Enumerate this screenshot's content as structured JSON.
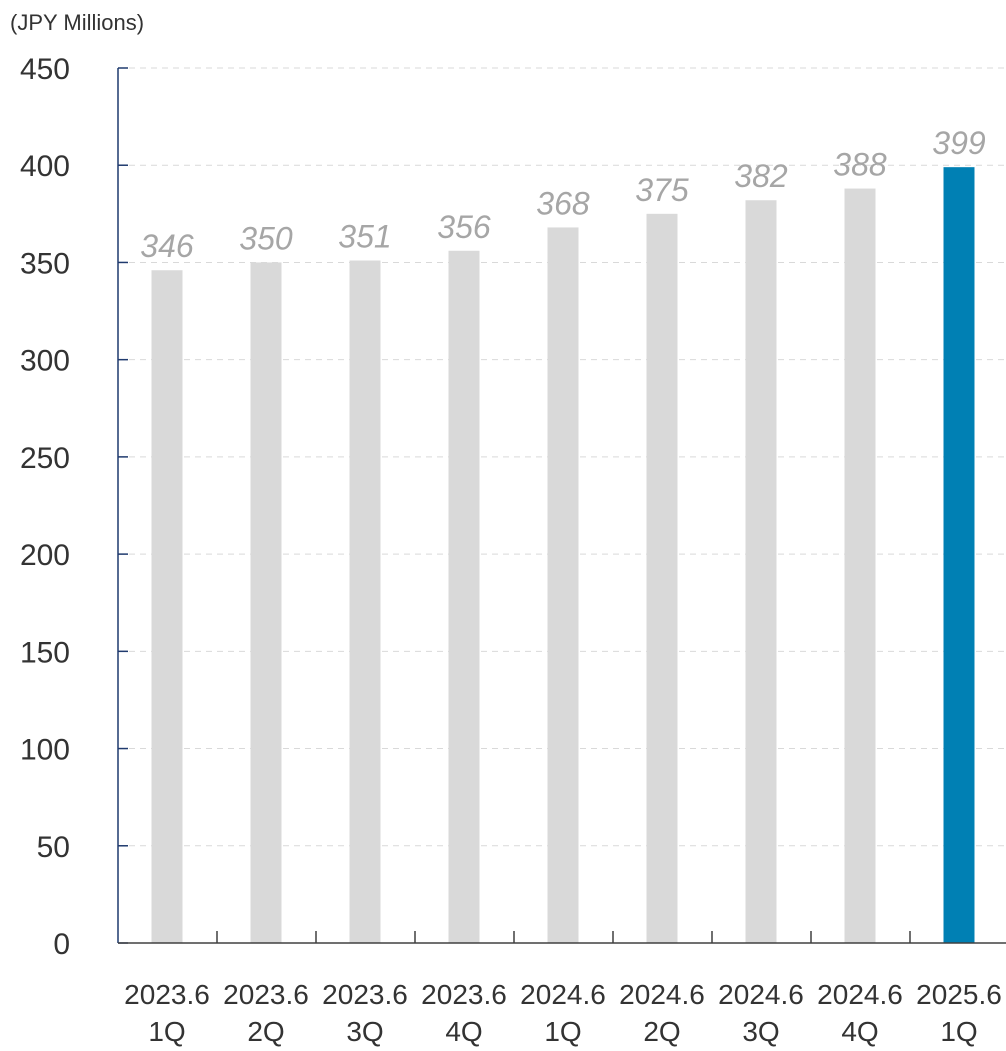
{
  "chart_data": {
    "type": "bar",
    "unit_label": "(JPY Millions)",
    "categories": [
      [
        "2023.6",
        "1Q"
      ],
      [
        "2023.6",
        "2Q"
      ],
      [
        "2023.6",
        "3Q"
      ],
      [
        "2023.6",
        "4Q"
      ],
      [
        "2024.6",
        "1Q"
      ],
      [
        "2024.6",
        "2Q"
      ],
      [
        "2024.6",
        "3Q"
      ],
      [
        "2024.6",
        "4Q"
      ],
      [
        "2025.6",
        "1Q"
      ]
    ],
    "values": [
      346,
      350,
      351,
      356,
      368,
      375,
      382,
      388,
      399
    ],
    "data_labels": [
      "346",
      "350",
      "351",
      "356",
      "368",
      "375",
      "382",
      "388",
      "399"
    ],
    "ylim": [
      0,
      450
    ],
    "yticks": [
      0,
      50,
      100,
      150,
      200,
      250,
      300,
      350,
      400,
      450
    ],
    "grid": true,
    "colors": {
      "bar": "#d9d9d9",
      "highlight_bar": "#0080b4",
      "axis": "#1f3a6e",
      "grid": "#d9d9d9",
      "data_label": "#a6a6a6"
    },
    "highlight_index": 8
  }
}
